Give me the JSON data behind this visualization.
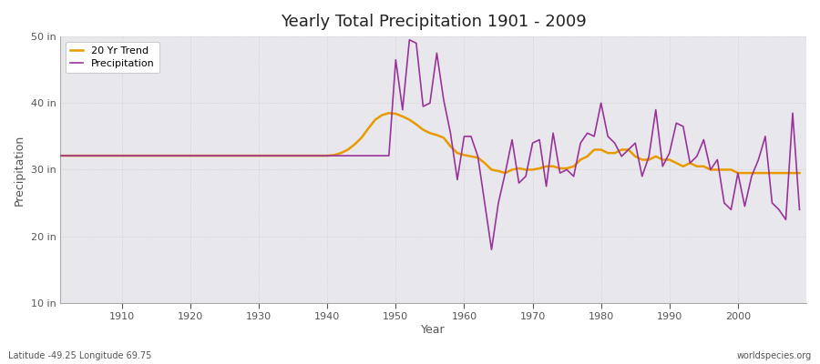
{
  "title": "Yearly Total Precipitation 1901 - 2009",
  "xlabel": "Year",
  "ylabel": "Precipitation",
  "left_label": "Latitude -49.25 Longitude 69.75",
  "right_label": "worldspecies.org",
  "ylim": [
    10,
    50
  ],
  "yticks": [
    10,
    20,
    30,
    40,
    50
  ],
  "ytick_labels": [
    "10 in",
    "20 in",
    "30 in",
    "40 in",
    "50 in"
  ],
  "xlim": [
    1901,
    2010
  ],
  "xticks": [
    1910,
    1920,
    1930,
    1940,
    1950,
    1960,
    1970,
    1980,
    1990,
    2000
  ],
  "precip_color": "#993399",
  "trend_color": "#e89a00",
  "bg_color": "#e8e8ec",
  "fig_bg": "#ffffff",
  "grid_color": "#cccccc",
  "spine_color": "#aaaaaa",
  "text_color": "#555555",
  "years": [
    1901,
    1902,
    1903,
    1904,
    1905,
    1906,
    1907,
    1908,
    1909,
    1910,
    1911,
    1912,
    1913,
    1914,
    1915,
    1916,
    1917,
    1918,
    1919,
    1920,
    1921,
    1922,
    1923,
    1924,
    1925,
    1926,
    1927,
    1928,
    1929,
    1930,
    1931,
    1932,
    1933,
    1934,
    1935,
    1936,
    1937,
    1938,
    1939,
    1940,
    1941,
    1942,
    1943,
    1944,
    1945,
    1946,
    1947,
    1948,
    1949,
    1950,
    1951,
    1952,
    1953,
    1954,
    1955,
    1956,
    1957,
    1958,
    1959,
    1960,
    1961,
    1962,
    1963,
    1964,
    1965,
    1966,
    1967,
    1968,
    1969,
    1970,
    1971,
    1972,
    1973,
    1974,
    1975,
    1976,
    1977,
    1978,
    1979,
    1980,
    1981,
    1982,
    1983,
    1984,
    1985,
    1986,
    1987,
    1988,
    1989,
    1990,
    1991,
    1992,
    1993,
    1994,
    1995,
    1996,
    1997,
    1998,
    1999,
    2000,
    2001,
    2002,
    2003,
    2004,
    2005,
    2006,
    2007,
    2008,
    2009
  ],
  "precip": [
    32.1,
    32.1,
    32.1,
    32.1,
    32.1,
    32.1,
    32.1,
    32.1,
    32.1,
    32.1,
    32.1,
    32.1,
    32.1,
    32.1,
    32.1,
    32.1,
    32.1,
    32.1,
    32.1,
    32.1,
    32.1,
    32.1,
    32.1,
    32.1,
    32.1,
    32.1,
    32.1,
    32.1,
    32.1,
    32.1,
    32.1,
    32.1,
    32.1,
    32.1,
    32.1,
    32.1,
    32.1,
    32.1,
    32.1,
    32.1,
    32.1,
    32.1,
    32.1,
    32.1,
    32.1,
    32.1,
    32.1,
    32.1,
    32.1,
    46.5,
    39.0,
    49.5,
    49.0,
    39.5,
    40.0,
    47.5,
    40.5,
    35.5,
    28.5,
    35.0,
    35.0,
    32.0,
    25.0,
    18.0,
    25.0,
    29.5,
    34.5,
    28.0,
    29.0,
    34.0,
    34.5,
    27.5,
    35.5,
    29.5,
    30.0,
    29.0,
    34.0,
    35.5,
    35.0,
    40.0,
    35.0,
    34.0,
    32.0,
    33.0,
    34.0,
    29.0,
    32.0,
    39.0,
    30.5,
    32.5,
    37.0,
    36.5,
    31.0,
    32.0,
    34.5,
    30.0,
    31.5,
    25.0,
    24.0,
    29.5,
    24.5,
    29.0,
    31.5,
    35.0,
    25.0,
    24.0,
    22.5,
    38.5,
    24.0
  ],
  "trend": [
    32.1,
    32.1,
    32.1,
    32.1,
    32.1,
    32.1,
    32.1,
    32.1,
    32.1,
    32.1,
    32.1,
    32.1,
    32.1,
    32.1,
    32.1,
    32.1,
    32.1,
    32.1,
    32.1,
    32.1,
    32.1,
    32.1,
    32.1,
    32.1,
    32.1,
    32.1,
    32.1,
    32.1,
    32.1,
    32.1,
    32.1,
    32.1,
    32.1,
    32.1,
    32.1,
    32.1,
    32.1,
    32.1,
    32.1,
    32.1,
    32.2,
    32.5,
    33.0,
    33.8,
    34.8,
    36.2,
    37.5,
    38.2,
    38.5,
    38.4,
    38.0,
    37.5,
    36.8,
    36.0,
    35.5,
    35.2,
    34.8,
    33.5,
    32.5,
    32.2,
    32.0,
    31.8,
    31.0,
    30.0,
    29.8,
    29.5,
    30.0,
    30.2,
    30.0,
    30.0,
    30.2,
    30.5,
    30.5,
    30.2,
    30.2,
    30.5,
    31.5,
    32.0,
    33.0,
    33.0,
    32.5,
    32.5,
    33.0,
    33.0,
    32.0,
    31.5,
    31.5,
    32.0,
    31.5,
    31.5,
    31.0,
    30.5,
    31.0,
    30.5,
    30.5,
    30.0,
    30.0,
    30.0,
    30.0,
    29.5,
    29.5,
    29.5,
    29.5,
    29.5,
    29.5,
    29.5,
    29.5,
    29.5,
    29.5
  ]
}
